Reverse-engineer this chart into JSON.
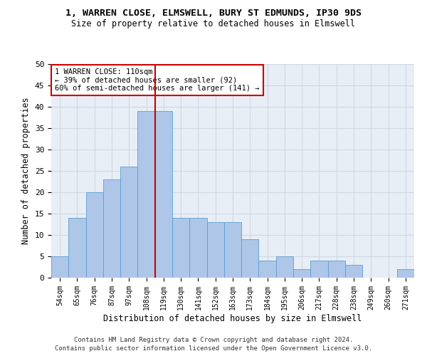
{
  "title1": "1, WARREN CLOSE, ELMSWELL, BURY ST EDMUNDS, IP30 9DS",
  "title2": "Size of property relative to detached houses in Elmswell",
  "xlabel": "Distribution of detached houses by size in Elmswell",
  "ylabel": "Number of detached properties",
  "categories": [
    "54sqm",
    "65sqm",
    "76sqm",
    "87sqm",
    "97sqm",
    "108sqm",
    "119sqm",
    "130sqm",
    "141sqm",
    "152sqm",
    "163sqm",
    "173sqm",
    "184sqm",
    "195sqm",
    "206sqm",
    "217sqm",
    "228sqm",
    "238sqm",
    "249sqm",
    "260sqm",
    "271sqm"
  ],
  "values": [
    5,
    14,
    20,
    23,
    26,
    39,
    39,
    14,
    14,
    13,
    13,
    9,
    4,
    5,
    2,
    4,
    4,
    3,
    0,
    0,
    2
  ],
  "bar_color": "#aec6e8",
  "bar_edge_color": "#5a9fd4",
  "vline_x_index": 5,
  "vline_color": "#cc0000",
  "annotation_text": "1 WARREN CLOSE: 110sqm\n← 39% of detached houses are smaller (92)\n60% of semi-detached houses are larger (141) →",
  "annotation_box_color": "#ffffff",
  "annotation_box_edge": "#cc0000",
  "ylim": [
    0,
    50
  ],
  "yticks": [
    0,
    5,
    10,
    15,
    20,
    25,
    30,
    35,
    40,
    45,
    50
  ],
  "grid_color": "#d0d8e4",
  "background_color": "#e8eef5",
  "footer1": "Contains HM Land Registry data © Crown copyright and database right 2024.",
  "footer2": "Contains public sector information licensed under the Open Government Licence v3.0."
}
